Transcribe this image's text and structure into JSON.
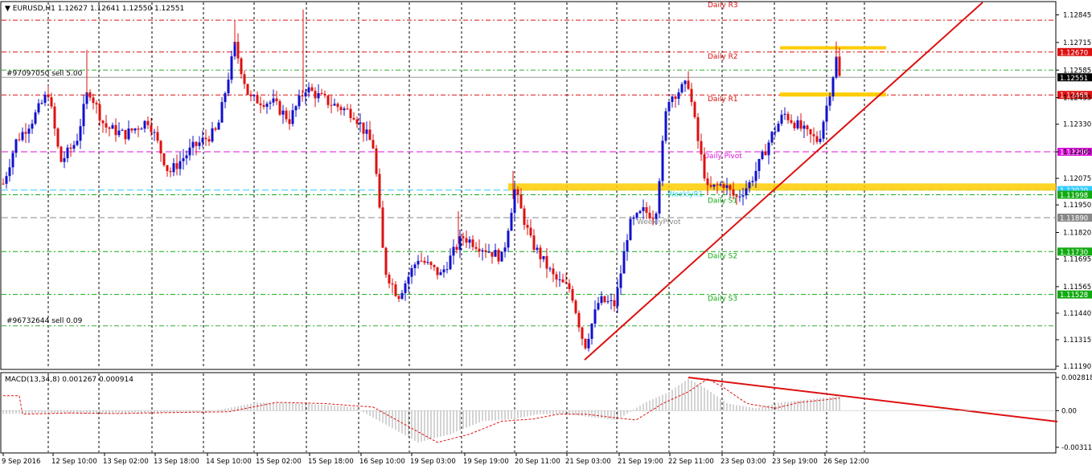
{
  "header": {
    "symbol_line": "▼ EURUSD,H1  1.12627 1.12641 1.12550 1.12551"
  },
  "orders": [
    {
      "label": "#97097050 sell 5.00",
      "price": 1.12551
    },
    {
      "label": "#96732644 sell 0.09",
      "price": 1.1138
    }
  ],
  "price_axis": {
    "ticks": [
      "1.12845",
      "1.12715",
      "1.12585",
      "1.12455",
      "1.12330",
      "1.12200",
      "1.12075",
      "1.11950",
      "1.11820",
      "1.11695",
      "1.11565",
      "1.11440",
      "1.11315",
      "1.11190"
    ]
  },
  "levels": [
    {
      "name": "Daily R3",
      "price": 1.1282,
      "color": "#dd1111",
      "style": "dashdot",
      "show_box": false
    },
    {
      "name": "Daily R2",
      "price": 1.1267,
      "color": "#dd1111",
      "style": "dashdot",
      "show_box": true
    },
    {
      "name": "Daily R1",
      "price": 1.12468,
      "color": "#dd1111",
      "style": "dashdot",
      "show_box": true
    },
    {
      "name": "Daily Pivot",
      "price": 1.122,
      "color": "#dd11dd",
      "style": "dash",
      "show_box": true
    },
    {
      "name": "WeeklyR1",
      "price": 1.1202,
      "color": "#33ccff",
      "style": "dash",
      "show_box": true
    },
    {
      "name": "Daily S1",
      "price": 1.11998,
      "color": "#11aa11",
      "style": "dashdot",
      "show_box": true
    },
    {
      "name": "WeeklyPivot",
      "price": 1.1189,
      "color": "#888888",
      "style": "dash",
      "show_box": true
    },
    {
      "name": "Daily S2",
      "price": 1.1173,
      "color": "#11aa11",
      "style": "dashdot",
      "show_box": true
    },
    {
      "name": "Daily S3",
      "price": 1.11528,
      "color": "#11aa11",
      "style": "dashdot",
      "show_box": true
    }
  ],
  "level_boxes": {
    "R2": "1.12670",
    "current": "1.12551",
    "R1": "1.12468",
    "pivot": "1.12200",
    "weekly_r1": "1.12020",
    "s1": "1.11998",
    "weekly_pivot": "1.11890",
    "s2": "1.11730",
    "s3": "1.11528"
  },
  "time_axis": {
    "labels": [
      "9 Sep 2016",
      "12 Sep 10:00",
      "13 Sep 02:00",
      "13 Sep 18:00",
      "14 Sep 10:00",
      "15 Sep 02:00",
      "15 Sep 18:00",
      "16 Sep 10:00",
      "19 Sep 03:00",
      "19 Sep 19:00",
      "20 Sep 11:00",
      "21 Sep 03:00",
      "21 Sep 19:00",
      "22 Sep 11:00",
      "23 Sep 03:00",
      "23 Sep 19:00",
      "26 Sep 12:00"
    ]
  },
  "macd": {
    "label": "MACD(13,34,8) 0.001267 0.000914",
    "ticks": [
      "0.002818",
      "0.00",
      "-0.003116"
    ]
  },
  "chart_data": {
    "type": "candlestick",
    "symbol": "EURUSD",
    "timeframe": "H1",
    "ylim": [
      1.1119,
      1.129
    ],
    "approx_path": [
      {
        "t": "9 Sep 2016",
        "price": 1.1225
      },
      {
        "t": "12 Sep 10:00",
        "price": 1.1245
      },
      {
        "t": "13 Sep 02:00",
        "price": 1.123
      },
      {
        "t": "13 Sep 18:00",
        "price": 1.1215
      },
      {
        "t": "14 Sep 10:00",
        "price": 1.1248
      },
      {
        "t": "15 Sep 02:00",
        "price": 1.1245
      },
      {
        "t": "15 Sep 18:00",
        "price": 1.1245
      },
      {
        "t": "16 Sep 10:00",
        "price": 1.1163
      },
      {
        "t": "19 Sep 03:00",
        "price": 1.117
      },
      {
        "t": "19 Sep 19:00",
        "price": 1.1175
      },
      {
        "t": "20 Sep 11:00",
        "price": 1.1195
      },
      {
        "t": "21 Sep 03:00",
        "price": 1.114
      },
      {
        "t": "21 Sep 19:00",
        "price": 1.1193
      },
      {
        "t": "22 Sep 11:00",
        "price": 1.124
      },
      {
        "t": "23 Sep 03:00",
        "price": 1.12
      },
      {
        "t": "23 Sep 19:00",
        "price": 1.1232
      },
      {
        "t": "26 Sep 12:00",
        "price": 1.1267
      }
    ]
  },
  "colors": {
    "bull": "#1111cc",
    "bear": "#dd1111",
    "trend": "#dd1111",
    "highlight": "#ffcc00",
    "grid": "#000000"
  }
}
